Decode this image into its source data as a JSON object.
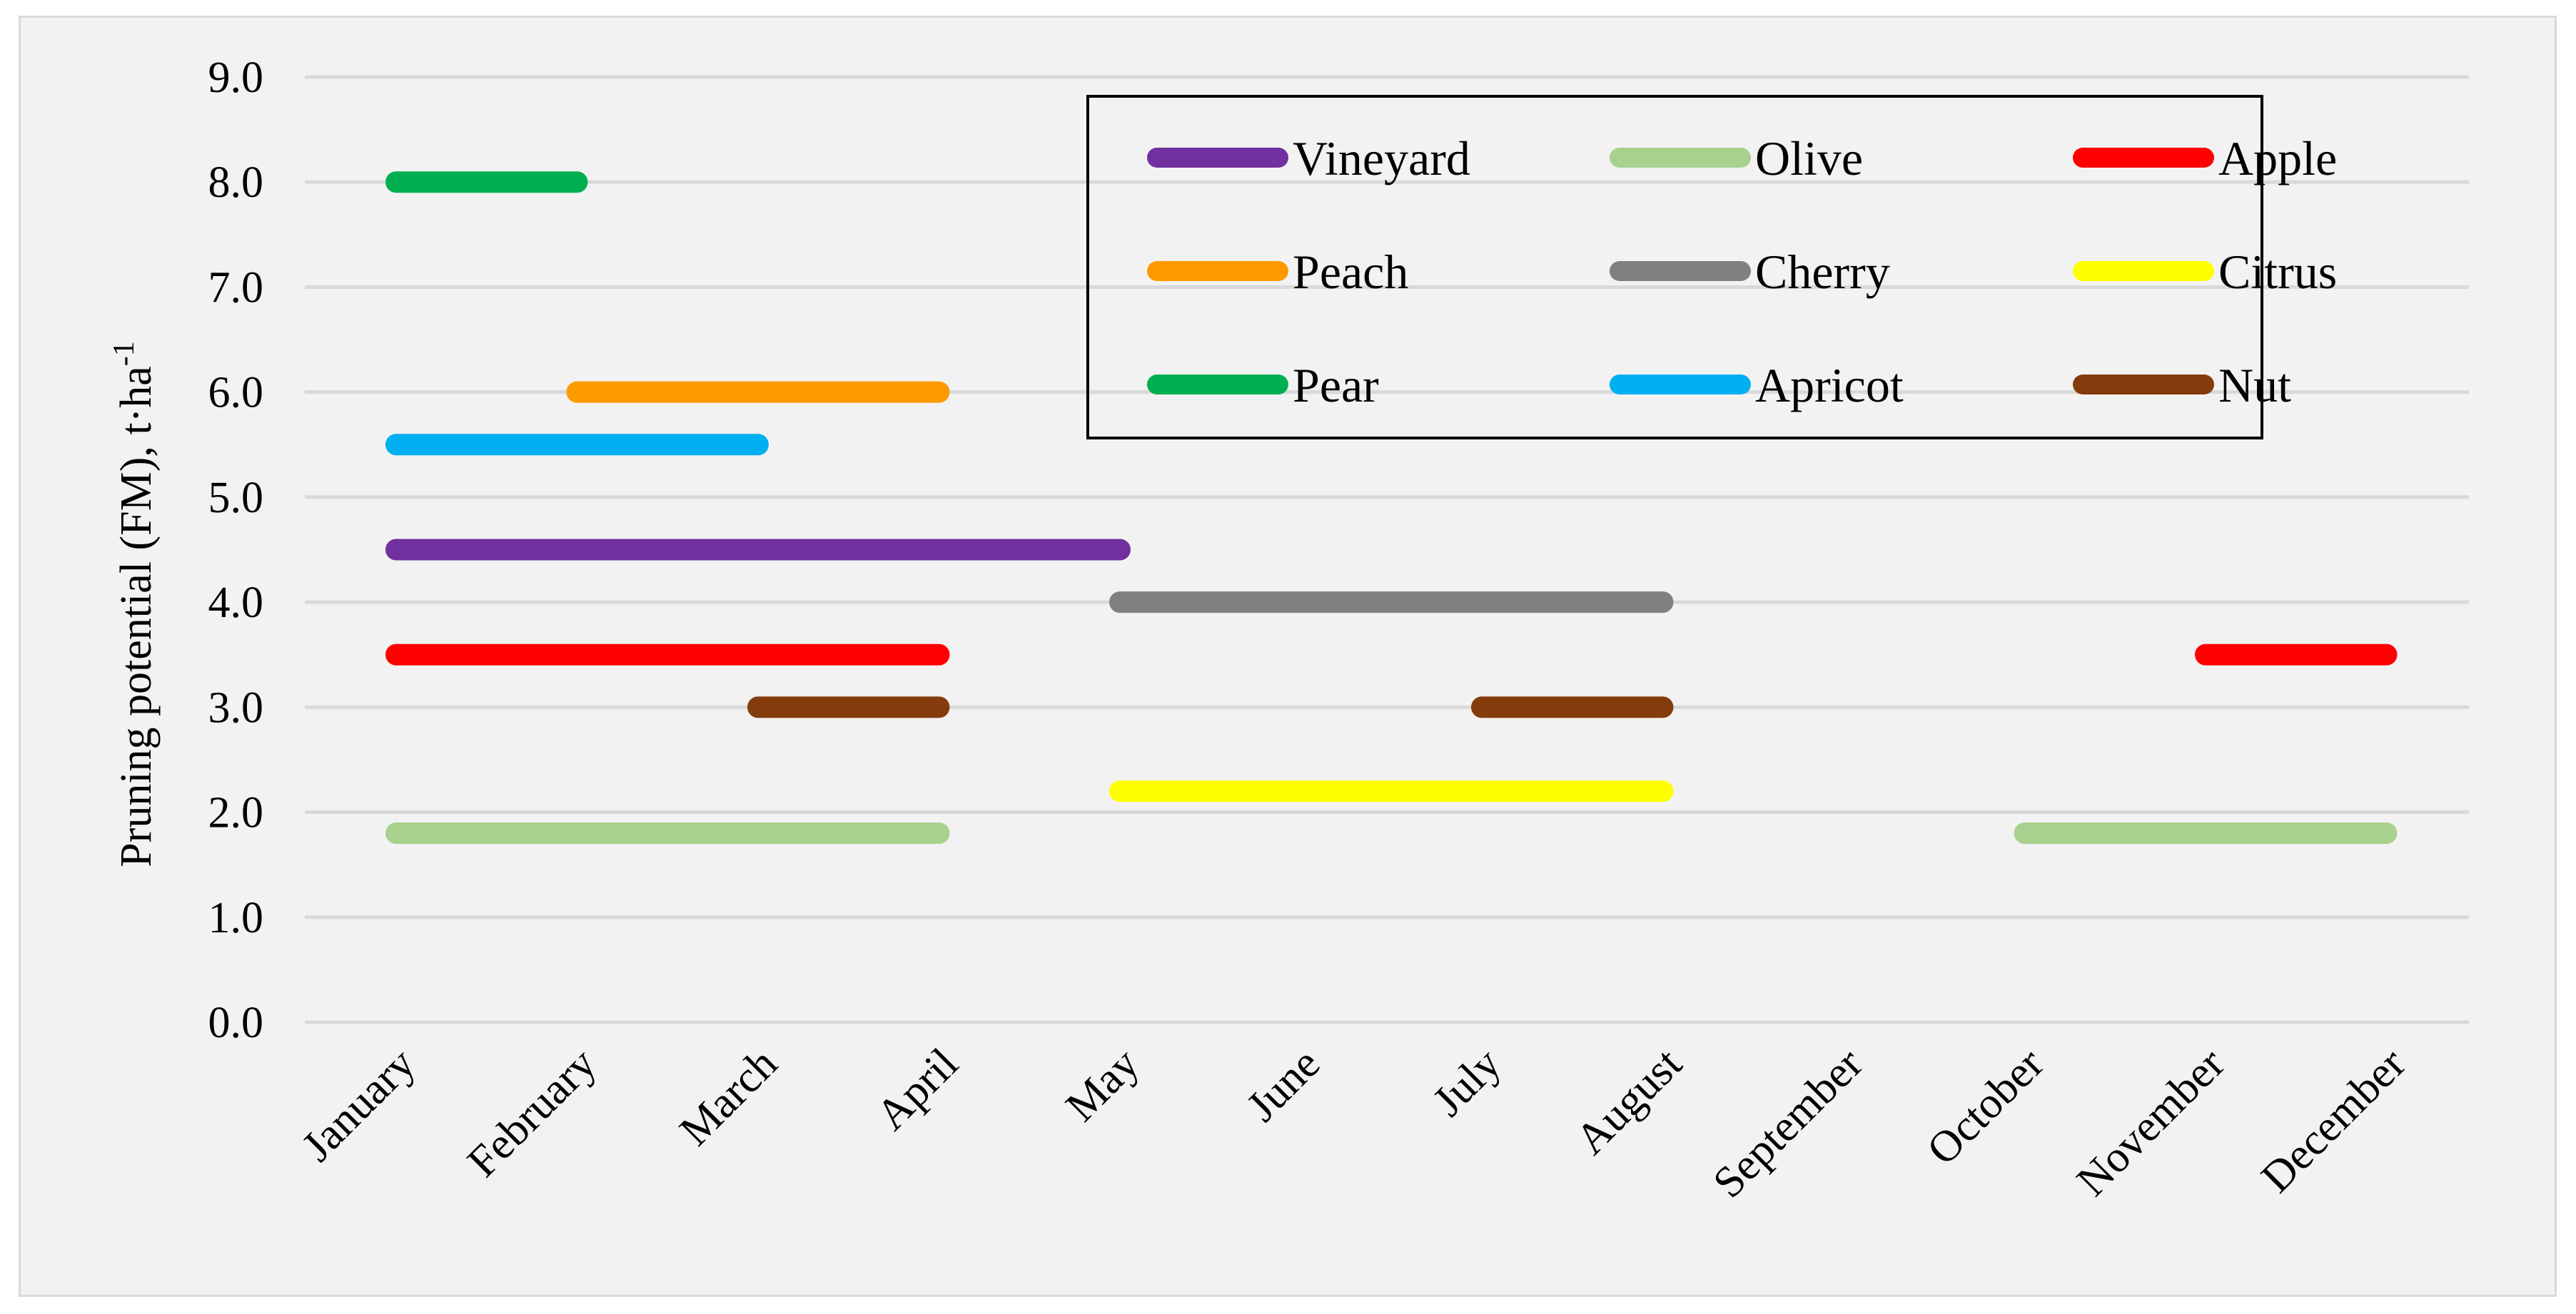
{
  "chart_data": {
    "type": "bar",
    "subtype": "floating-range",
    "title": "",
    "xlabel": "",
    "ylabel": "Pruning potential (FM),  t·ha",
    "ylabel_superscript": "-1",
    "ylim": [
      0,
      9
    ],
    "yticks": [
      "0.0",
      "1.0",
      "2.0",
      "3.0",
      "4.0",
      "5.0",
      "6.0",
      "7.0",
      "8.0",
      "9.0"
    ],
    "categories": [
      "January",
      "February",
      "March",
      "April",
      "May",
      "June",
      "July",
      "August",
      "September",
      "October",
      "November",
      "December"
    ],
    "grid": true,
    "legend_position": "top-right",
    "series": [
      {
        "name": "Vineyard",
        "color": "#7030a0",
        "segments": [
          {
            "start": "January",
            "end": "May",
            "value": 4.5
          }
        ]
      },
      {
        "name": "Olive",
        "color": "#a9d18e",
        "segments": [
          {
            "start": "January",
            "end": "April",
            "value": 1.8
          },
          {
            "start": "October",
            "end": "December",
            "value": 1.8
          }
        ]
      },
      {
        "name": "Apple",
        "color": "#ff0000",
        "segments": [
          {
            "start": "January",
            "end": "April",
            "value": 3.5
          },
          {
            "start": "November",
            "end": "December",
            "value": 3.5
          }
        ]
      },
      {
        "name": "Peach",
        "color": "#ff9900",
        "segments": [
          {
            "start": "February",
            "end": "April",
            "value": 6.0
          }
        ]
      },
      {
        "name": "Cherry",
        "color": "#808080",
        "segments": [
          {
            "start": "May",
            "end": "August",
            "value": 4.0
          }
        ]
      },
      {
        "name": "Citrus",
        "color": "#ffff00",
        "segments": [
          {
            "start": "May",
            "end": "August",
            "value": 2.2
          }
        ]
      },
      {
        "name": "Pear",
        "color": "#00b050",
        "segments": [
          {
            "start": "January",
            "end": "February",
            "value": 8.0
          }
        ]
      },
      {
        "name": "Apricot",
        "color": "#00b0f0",
        "segments": [
          {
            "start": "January",
            "end": "March",
            "value": 5.5
          }
        ]
      },
      {
        "name": "Nut",
        "color": "#843c0c",
        "segments": [
          {
            "start": "March",
            "end": "April",
            "value": 3.0
          },
          {
            "start": "July",
            "end": "August",
            "value": 3.0
          }
        ]
      }
    ]
  }
}
